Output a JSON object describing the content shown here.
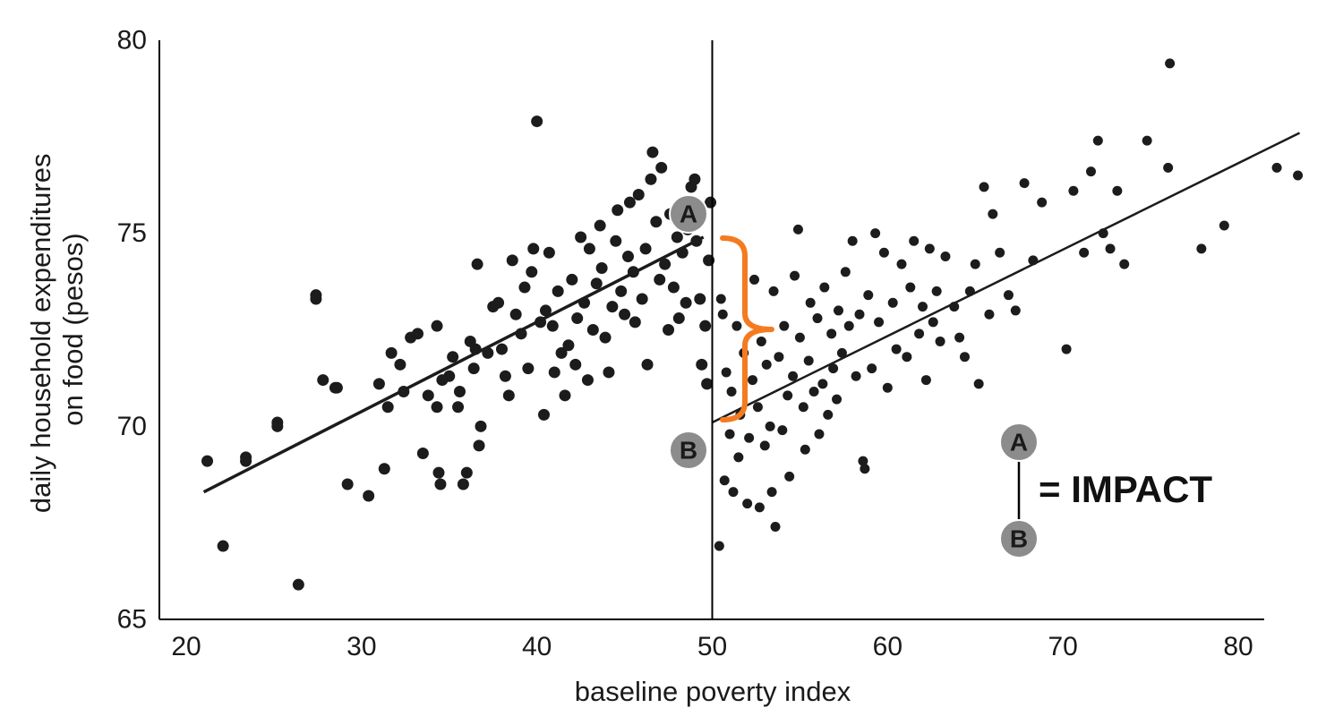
{
  "chart_data": {
    "type": "scatter",
    "title": "",
    "xlabel": "baseline poverty index",
    "ylabel_lines": [
      "daily household expenditures",
      "on food (pesos)"
    ],
    "xlim": [
      18,
      82
    ],
    "ylim": [
      65,
      80
    ],
    "x_ticks": [
      "20",
      "30",
      "40",
      "50",
      "60",
      "70",
      "80"
    ],
    "y_ticks": [
      "65",
      "70",
      "75",
      "80"
    ],
    "cutoff_x": 50,
    "grid": false,
    "regression_lines": [
      {
        "x": [
          21,
          49.5
        ],
        "y": [
          68.3,
          74.9
        ]
      },
      {
        "x": [
          50,
          83.5
        ],
        "y": [
          70.1,
          77.6
        ]
      }
    ],
    "points": [
      [
        21.2,
        69.1
      ],
      [
        22.1,
        66.9
      ],
      [
        23.4,
        69.2
      ],
      [
        23.4,
        69.1
      ],
      [
        25.2,
        70.1
      ],
      [
        25.2,
        70.0
      ],
      [
        26.4,
        65.9
      ],
      [
        27.4,
        73.4
      ],
      [
        27.4,
        73.3
      ],
      [
        27.8,
        71.2
      ],
      [
        28.5,
        71.0
      ],
      [
        28.6,
        71.0
      ],
      [
        29.2,
        68.5
      ],
      [
        30.4,
        68.2
      ],
      [
        31.0,
        71.1
      ],
      [
        31.3,
        68.9
      ],
      [
        31.5,
        70.5
      ],
      [
        31.7,
        71.9
      ],
      [
        32.2,
        71.6
      ],
      [
        32.4,
        70.9
      ],
      [
        32.8,
        72.3
      ],
      [
        33.2,
        72.4
      ],
      [
        33.5,
        69.3
      ],
      [
        33.8,
        70.8
      ],
      [
        34.3,
        72.6
      ],
      [
        34.3,
        70.5
      ],
      [
        34.4,
        68.8
      ],
      [
        34.5,
        68.5
      ],
      [
        34.6,
        71.2
      ],
      [
        35.0,
        71.3
      ],
      [
        35.2,
        71.8
      ],
      [
        35.5,
        70.5
      ],
      [
        35.6,
        70.9
      ],
      [
        35.8,
        68.5
      ],
      [
        36.0,
        68.8
      ],
      [
        36.2,
        72.2
      ],
      [
        36.4,
        71.5
      ],
      [
        36.5,
        72.0
      ],
      [
        36.6,
        74.2
      ],
      [
        36.7,
        69.5
      ],
      [
        36.8,
        70.0
      ],
      [
        37.2,
        71.9
      ],
      [
        37.5,
        73.1
      ],
      [
        37.8,
        73.2
      ],
      [
        38.0,
        72.0
      ],
      [
        38.2,
        71.3
      ],
      [
        38.4,
        70.8
      ],
      [
        38.6,
        74.3
      ],
      [
        38.8,
        72.9
      ],
      [
        39.1,
        72.4
      ],
      [
        39.3,
        73.6
      ],
      [
        39.5,
        71.5
      ],
      [
        39.7,
        74.0
      ],
      [
        39.8,
        74.6
      ],
      [
        40.0,
        77.9
      ],
      [
        40.2,
        72.7
      ],
      [
        40.4,
        70.3
      ],
      [
        40.5,
        73.0
      ],
      [
        40.7,
        74.5
      ],
      [
        40.9,
        72.6
      ],
      [
        41.0,
        71.4
      ],
      [
        41.2,
        73.5
      ],
      [
        41.4,
        71.9
      ],
      [
        41.6,
        70.8
      ],
      [
        41.8,
        72.1
      ],
      [
        42.0,
        73.8
      ],
      [
        42.2,
        71.6
      ],
      [
        42.3,
        72.8
      ],
      [
        42.5,
        74.9
      ],
      [
        42.7,
        73.2
      ],
      [
        42.9,
        71.2
      ],
      [
        43.0,
        74.6
      ],
      [
        43.2,
        72.5
      ],
      [
        43.4,
        73.7
      ],
      [
        43.6,
        75.2
      ],
      [
        43.7,
        74.1
      ],
      [
        43.9,
        72.3
      ],
      [
        44.1,
        71.4
      ],
      [
        44.3,
        73.1
      ],
      [
        44.5,
        74.8
      ],
      [
        44.6,
        75.6
      ],
      [
        44.8,
        73.5
      ],
      [
        45.0,
        72.9
      ],
      [
        45.2,
        74.4
      ],
      [
        45.3,
        75.8
      ],
      [
        45.5,
        74.0
      ],
      [
        45.6,
        72.7
      ],
      [
        45.8,
        76.0
      ],
      [
        46.0,
        73.3
      ],
      [
        46.2,
        74.6
      ],
      [
        46.3,
        71.6
      ],
      [
        46.5,
        76.4
      ],
      [
        46.6,
        77.1
      ],
      [
        46.8,
        75.3
      ],
      [
        47.0,
        73.8
      ],
      [
        47.1,
        76.7
      ],
      [
        47.3,
        74.2
      ],
      [
        47.5,
        72.5
      ],
      [
        47.6,
        75.5
      ],
      [
        47.8,
        73.6
      ],
      [
        48.0,
        74.9
      ],
      [
        48.1,
        72.8
      ],
      [
        48.3,
        74.5
      ],
      [
        48.5,
        73.2
      ],
      [
        48.6,
        75.1
      ],
      [
        48.8,
        76.2
      ],
      [
        49.0,
        76.4
      ],
      [
        49.1,
        74.8
      ],
      [
        49.3,
        73.3
      ],
      [
        49.4,
        71.6
      ],
      [
        49.6,
        72.6
      ],
      [
        49.7,
        71.1
      ],
      [
        49.8,
        74.3
      ],
      [
        49.9,
        75.8
      ],
      [
        50.4,
        66.9
      ],
      [
        50.5,
        73.3
      ],
      [
        50.6,
        72.9
      ],
      [
        50.7,
        68.6
      ],
      [
        50.8,
        71.4
      ],
      [
        51.0,
        69.8
      ],
      [
        51.1,
        70.9
      ],
      [
        51.2,
        68.3
      ],
      [
        51.4,
        72.6
      ],
      [
        51.5,
        69.2
      ],
      [
        51.6,
        70.3
      ],
      [
        51.8,
        71.9
      ],
      [
        52.0,
        68.0
      ],
      [
        52.1,
        69.7
      ],
      [
        52.3,
        71.2
      ],
      [
        52.4,
        73.8
      ],
      [
        52.6,
        70.5
      ],
      [
        52.7,
        67.9
      ],
      [
        52.8,
        72.2
      ],
      [
        53.0,
        69.5
      ],
      [
        53.1,
        71.6
      ],
      [
        53.3,
        70.0
      ],
      [
        53.4,
        68.3
      ],
      [
        53.5,
        73.5
      ],
      [
        53.6,
        67.4
      ],
      [
        53.8,
        71.8
      ],
      [
        54.0,
        69.9
      ],
      [
        54.1,
        72.6
      ],
      [
        54.3,
        70.8
      ],
      [
        54.4,
        68.7
      ],
      [
        54.6,
        71.3
      ],
      [
        54.7,
        73.9
      ],
      [
        54.9,
        75.1
      ],
      [
        55.0,
        72.3
      ],
      [
        55.2,
        70.5
      ],
      [
        55.3,
        69.4
      ],
      [
        55.5,
        71.7
      ],
      [
        55.6,
        73.2
      ],
      [
        55.8,
        70.9
      ],
      [
        56.0,
        72.8
      ],
      [
        56.1,
        69.8
      ],
      [
        56.3,
        71.1
      ],
      [
        56.4,
        73.6
      ],
      [
        56.6,
        70.3
      ],
      [
        56.8,
        72.4
      ],
      [
        56.9,
        71.5
      ],
      [
        57.1,
        70.7
      ],
      [
        57.2,
        73.0
      ],
      [
        57.4,
        71.9
      ],
      [
        57.6,
        74.0
      ],
      [
        57.8,
        72.6
      ],
      [
        58.0,
        74.8
      ],
      [
        58.2,
        71.3
      ],
      [
        58.4,
        72.9
      ],
      [
        58.6,
        69.1
      ],
      [
        58.7,
        68.9
      ],
      [
        58.9,
        73.4
      ],
      [
        59.1,
        71.5
      ],
      [
        59.3,
        75.0
      ],
      [
        59.5,
        72.7
      ],
      [
        59.8,
        74.5
      ],
      [
        60.0,
        71.0
      ],
      [
        60.3,
        73.2
      ],
      [
        60.5,
        72.0
      ],
      [
        60.8,
        74.2
      ],
      [
        61.1,
        71.8
      ],
      [
        61.3,
        73.6
      ],
      [
        61.5,
        74.8
      ],
      [
        61.8,
        72.4
      ],
      [
        62.0,
        73.1
      ],
      [
        62.2,
        71.2
      ],
      [
        62.4,
        74.6
      ],
      [
        62.6,
        72.7
      ],
      [
        62.8,
        73.5
      ],
      [
        63.0,
        72.2
      ],
      [
        63.3,
        74.4
      ],
      [
        63.8,
        73.1
      ],
      [
        64.1,
        72.3
      ],
      [
        64.4,
        71.8
      ],
      [
        64.7,
        73.5
      ],
      [
        65.0,
        74.2
      ],
      [
        65.2,
        71.1
      ],
      [
        65.5,
        76.2
      ],
      [
        65.8,
        72.9
      ],
      [
        66.0,
        75.5
      ],
      [
        66.4,
        74.5
      ],
      [
        66.9,
        73.4
      ],
      [
        67.3,
        73.0
      ],
      [
        67.8,
        76.3
      ],
      [
        68.3,
        74.3
      ],
      [
        68.8,
        75.8
      ],
      [
        70.2,
        72.0
      ],
      [
        70.6,
        76.1
      ],
      [
        71.2,
        74.5
      ],
      [
        71.6,
        76.6
      ],
      [
        72.0,
        77.4
      ],
      [
        72.3,
        75.0
      ],
      [
        72.7,
        74.6
      ],
      [
        73.1,
        76.1
      ],
      [
        73.5,
        74.2
      ],
      [
        74.8,
        77.4
      ],
      [
        76.0,
        76.7
      ],
      [
        76.1,
        79.4
      ],
      [
        77.9,
        74.6
      ],
      [
        79.2,
        75.2
      ],
      [
        82.2,
        76.7
      ],
      [
        83.4,
        76.5
      ]
    ],
    "annotations": {
      "point_a_label": "A",
      "point_b_label": "B",
      "legend_a_label": "A",
      "legend_b_label": "B",
      "impact_text": "= IMPACT"
    }
  },
  "colors": {
    "points": "#1c1c1c",
    "lines": "#1c1c1c",
    "bracket": "#f47b20",
    "badge_fill": "#8c8c8c",
    "text": "#1a1a1a"
  }
}
